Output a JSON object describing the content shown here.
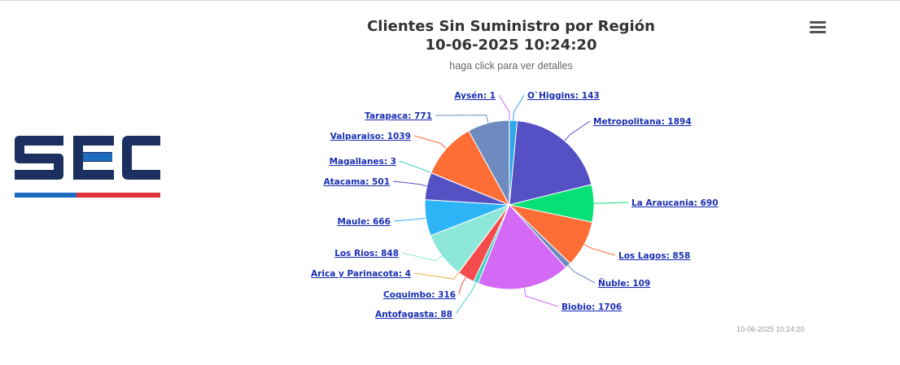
{
  "header": {
    "title_line1": "Clientes Sin Suministro por Región",
    "title_line2": "10-06-2025 10:24:20",
    "subtitle": "haga click para ver detalles",
    "menu_icon": "hamburger-menu-icon"
  },
  "logo": {
    "text": "SEC",
    "colors": {
      "navy": "#1b3060",
      "blue": "#1f6bbf",
      "red": "#e0333c"
    }
  },
  "footer": {
    "timestamp": "10-06-2025 10:24:20"
  },
  "chart_data": {
    "type": "pie",
    "title": "Clientes Sin Suministro por Región 10-06-2025 10:24:20",
    "subtitle": "haga click para ver detalles",
    "label_format": "{name}: {value}",
    "slices": [
      {
        "name": "O`Higgins",
        "value": 143,
        "color": "#2ea7e8"
      },
      {
        "name": "Metropolitana",
        "value": 1894,
        "color": "#5650c5"
      },
      {
        "name": "La Araucania",
        "value": 690,
        "color": "#06e074"
      },
      {
        "name": "Los Lagos",
        "value": 858,
        "color": "#fd6d36"
      },
      {
        "name": "Ñuble",
        "value": 109,
        "color": "#6e8bbf"
      },
      {
        "name": "Biobio",
        "value": 1706,
        "color": "#d369f5"
      },
      {
        "name": "Antofagasta",
        "value": 88,
        "color": "#3fd3c5"
      },
      {
        "name": "Coquimbo",
        "value": 316,
        "color": "#f44c4c"
      },
      {
        "name": "Arica y Parinacota",
        "value": 4,
        "color": "#f3b04a"
      },
      {
        "name": "Los Rios",
        "value": 848,
        "color": "#8ee8da"
      },
      {
        "name": "Maule",
        "value": 666,
        "color": "#2db4f6"
      },
      {
        "name": "Atacama",
        "value": 501,
        "color": "#5650c5"
      },
      {
        "name": "Magallanes",
        "value": 3,
        "color": "#3fd3c5"
      },
      {
        "name": "Valparaiso",
        "value": 1039,
        "color": "#fd6d36"
      },
      {
        "name": "Tarapaca",
        "value": 771,
        "color": "#6e8bbf"
      },
      {
        "name": "Aysén",
        "value": 1,
        "color": "#d369f5"
      }
    ]
  }
}
